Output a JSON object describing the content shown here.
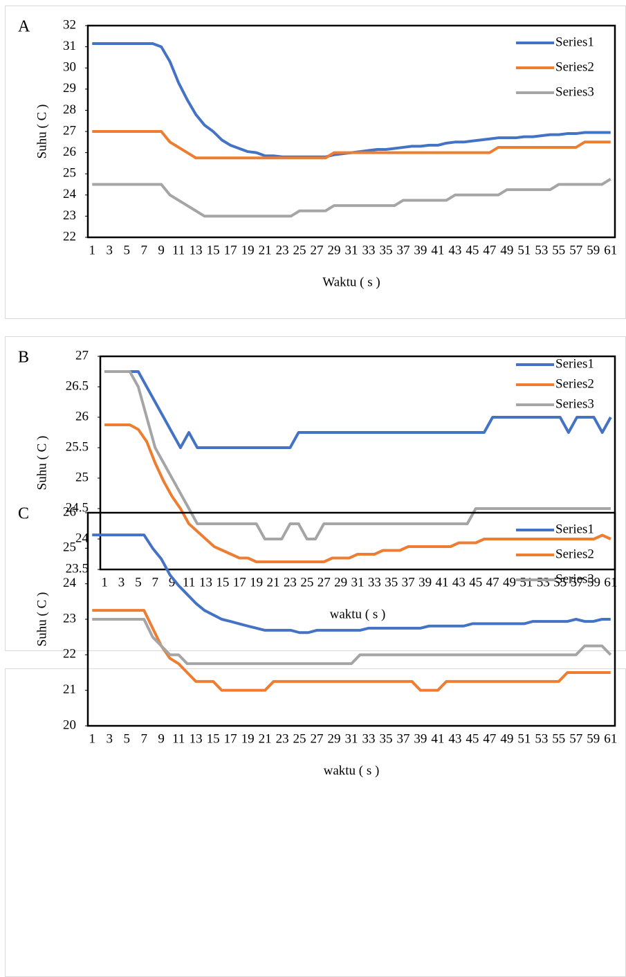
{
  "chart_data": [
    {
      "type": "line",
      "label": "A",
      "ylabel": "Suhu ( C )",
      "xlabel": "Waktu ( s )",
      "categories": [
        1,
        null,
        3,
        null,
        5,
        null,
        7,
        null,
        9,
        null,
        11,
        null,
        13,
        null,
        15,
        null,
        17,
        null,
        19,
        null,
        21,
        null,
        23,
        null,
        25,
        null,
        27,
        null,
        29,
        null,
        31,
        null,
        33,
        null,
        35,
        null,
        37,
        null,
        39,
        null,
        41,
        null,
        43,
        null,
        45,
        null,
        47,
        null,
        49,
        null,
        51,
        null,
        53,
        null,
        55,
        null,
        57,
        null,
        59,
        null,
        61
      ],
      "ylim": [
        22,
        32
      ],
      "yticks": [
        22,
        23,
        24,
        25,
        26,
        27,
        28,
        29,
        30,
        31,
        32
      ],
      "grid": false,
      "legend": "upper right",
      "series": [
        {
          "name": "Series1",
          "color": "#4472c4",
          "values": [
            31.15,
            31.15,
            31.15,
            31.15,
            31.15,
            31.15,
            31.15,
            31.15,
            31.0,
            30.3,
            29.3,
            28.5,
            27.8,
            27.3,
            27.0,
            26.6,
            26.35,
            26.2,
            26.05,
            26.0,
            25.85,
            25.85,
            25.8,
            25.8,
            25.8,
            25.8,
            25.8,
            25.8,
            25.9,
            25.95,
            26.0,
            26.05,
            26.1,
            26.15,
            26.15,
            26.2,
            26.25,
            26.3,
            26.3,
            26.35,
            26.35,
            26.45,
            26.5,
            26.5,
            26.55,
            26.6,
            26.65,
            26.7,
            26.7,
            26.7,
            26.75,
            26.75,
            26.8,
            26.85,
            26.85,
            26.9,
            26.9,
            26.95,
            26.95,
            26.95,
            26.95
          ]
        },
        {
          "name": "Series2",
          "color": "#ed7d31",
          "values": [
            27,
            27,
            27,
            27,
            27,
            27,
            27,
            27,
            27,
            26.5,
            26.25,
            26,
            25.75,
            25.75,
            25.75,
            25.75,
            25.75,
            25.75,
            25.75,
            25.75,
            25.75,
            25.75,
            25.75,
            25.75,
            25.75,
            25.75,
            25.75,
            25.75,
            26,
            26,
            26,
            26,
            26,
            26,
            26,
            26,
            26,
            26,
            26,
            26,
            26,
            26,
            26,
            26,
            26,
            26,
            26,
            26.25,
            26.25,
            26.25,
            26.25,
            26.25,
            26.25,
            26.25,
            26.25,
            26.25,
            26.25,
            26.5,
            26.5,
            26.5,
            26.5
          ]
        },
        {
          "name": "Series3",
          "color": "#a5a5a5",
          "values": [
            24.5,
            24.5,
            24.5,
            24.5,
            24.5,
            24.5,
            24.5,
            24.5,
            24.5,
            24,
            23.75,
            23.5,
            23.25,
            23,
            23,
            23,
            23,
            23,
            23,
            23,
            23,
            23,
            23,
            23,
            23.25,
            23.25,
            23.25,
            23.25,
            23.5,
            23.5,
            23.5,
            23.5,
            23.5,
            23.5,
            23.5,
            23.5,
            23.75,
            23.75,
            23.75,
            23.75,
            23.75,
            23.75,
            24,
            24,
            24,
            24,
            24,
            24,
            24.25,
            24.25,
            24.25,
            24.25,
            24.25,
            24.25,
            24.5,
            24.5,
            24.5,
            24.5,
            24.5,
            24.5,
            24.75
          ]
        }
      ]
    },
    {
      "type": "line",
      "label": "B",
      "ylabel": "Suhu ( C )",
      "xlabel": "waktu ( s )",
      "categories": [
        1,
        null,
        3,
        null,
        5,
        null,
        7,
        null,
        9,
        null,
        11,
        null,
        13,
        null,
        15,
        null,
        17,
        null,
        19,
        null,
        21,
        null,
        23,
        null,
        25,
        null,
        27,
        null,
        29,
        null,
        31,
        null,
        33,
        null,
        35,
        null,
        37,
        null,
        39,
        null,
        41,
        null,
        43,
        null,
        45,
        null,
        47,
        null,
        49,
        null,
        51,
        null,
        53,
        null,
        55,
        null,
        57,
        null,
        59,
        null,
        61
      ],
      "ylim": [
        23.5,
        27
      ],
      "yticks": [
        23.5,
        24,
        24.5,
        25,
        25.5,
        26,
        26.5,
        27
      ],
      "grid": false,
      "legend": "upper right",
      "series": [
        {
          "name": "Series1",
          "color": "#4472c4",
          "values": [
            26.75,
            26.75,
            26.75,
            26.75,
            26.75,
            26.5,
            26.25,
            26,
            25.75,
            25.5,
            25.75,
            25.5,
            25.5,
            25.5,
            25.5,
            25.5,
            25.5,
            25.5,
            25.5,
            25.5,
            25.5,
            25.5,
            25.5,
            25.75,
            25.75,
            25.75,
            25.75,
            25.75,
            25.75,
            25.75,
            25.75,
            25.75,
            25.75,
            25.75,
            25.75,
            25.75,
            25.75,
            25.75,
            25.75,
            25.75,
            25.75,
            25.75,
            25.75,
            25.75,
            25.75,
            25.75,
            26,
            26,
            26,
            26,
            26,
            26,
            26,
            26,
            26,
            25.75,
            26,
            26,
            26,
            25.75,
            26
          ]
        },
        {
          "name": "Series2",
          "color": "#ed7d31",
          "values": [
            25.875,
            25.875,
            25.875,
            25.875,
            25.8,
            25.6,
            25.25,
            24.95,
            24.7,
            24.5,
            24.25,
            24.125,
            24,
            23.875,
            23.8125,
            23.75,
            23.6875,
            23.6875,
            23.625,
            23.625,
            23.625,
            23.625,
            23.625,
            23.625,
            23.625,
            23.625,
            23.625,
            23.6875,
            23.6875,
            23.6875,
            23.75,
            23.75,
            23.75,
            23.8125,
            23.8125,
            23.8125,
            23.875,
            23.875,
            23.875,
            23.875,
            23.875,
            23.875,
            23.9375,
            23.9375,
            23.9375,
            24,
            24,
            24,
            24,
            24,
            24,
            24,
            24,
            24,
            24,
            24,
            24,
            24,
            24,
            24.0625,
            24
          ]
        },
        {
          "name": "Series3",
          "color": "#a5a5a5",
          "values": [
            26.75,
            26.75,
            26.75,
            26.75,
            26.5,
            26,
            25.5,
            25.25,
            25,
            24.75,
            24.5,
            24.25,
            24.25,
            24.25,
            24.25,
            24.25,
            24.25,
            24.25,
            24.25,
            24,
            24,
            24,
            24.25,
            24.25,
            24,
            24,
            24.25,
            24.25,
            24.25,
            24.25,
            24.25,
            24.25,
            24.25,
            24.25,
            24.25,
            24.25,
            24.25,
            24.25,
            24.25,
            24.25,
            24.25,
            24.25,
            24.25,
            24.25,
            24.5,
            24.5,
            24.5,
            24.5,
            24.5,
            24.5,
            24.5,
            24.5,
            24.5,
            24.5,
            24.5,
            24.5,
            24.5,
            24.5,
            24.5,
            24.5,
            24.5
          ]
        }
      ]
    },
    {
      "type": "line",
      "label": "C",
      "ylabel": "Suhu ( C )",
      "xlabel": "waktu ( s )",
      "categories": [
        1,
        null,
        3,
        null,
        5,
        null,
        7,
        null,
        9,
        null,
        11,
        null,
        13,
        null,
        15,
        null,
        17,
        null,
        19,
        null,
        21,
        null,
        23,
        null,
        25,
        null,
        27,
        null,
        29,
        null,
        31,
        null,
        33,
        null,
        35,
        null,
        37,
        null,
        39,
        null,
        41,
        null,
        43,
        null,
        45,
        null,
        47,
        null,
        49,
        null,
        51,
        null,
        53,
        null,
        55,
        null,
        57,
        null,
        59,
        null,
        61
      ],
      "ylim": [
        20,
        26
      ],
      "yticks": [
        20,
        21,
        22,
        23,
        24,
        25,
        26
      ],
      "grid": false,
      "legend": "upper right",
      "series": [
        {
          "name": "Series1",
          "color": "#4472c4",
          "values": [
            25.375,
            25.375,
            25.375,
            25.375,
            25.375,
            25.375,
            25.375,
            25,
            24.7,
            24.25,
            23.95,
            23.7,
            23.45,
            23.25,
            23.125,
            23,
            22.94,
            22.875,
            22.81,
            22.75,
            22.69,
            22.69,
            22.69,
            22.69,
            22.625,
            22.625,
            22.69,
            22.69,
            22.69,
            22.69,
            22.69,
            22.69,
            22.75,
            22.75,
            22.75,
            22.75,
            22.75,
            22.75,
            22.75,
            22.81,
            22.81,
            22.81,
            22.81,
            22.81,
            22.875,
            22.875,
            22.875,
            22.875,
            22.875,
            22.875,
            22.875,
            22.94,
            22.94,
            22.94,
            22.94,
            22.94,
            23,
            22.94,
            22.94,
            23,
            23
          ]
        },
        {
          "name": "Series2",
          "color": "#ed7d31",
          "values": [
            23.25,
            23.25,
            23.25,
            23.25,
            23.25,
            23.25,
            23.25,
            22.75,
            22.25,
            21.9,
            21.75,
            21.5,
            21.25,
            21.25,
            21.25,
            21,
            21,
            21,
            21,
            21,
            21,
            21.25,
            21.25,
            21.25,
            21.25,
            21.25,
            21.25,
            21.25,
            21.25,
            21.25,
            21.25,
            21.25,
            21.25,
            21.25,
            21.25,
            21.25,
            21.25,
            21.25,
            21,
            21,
            21,
            21.25,
            21.25,
            21.25,
            21.25,
            21.25,
            21.25,
            21.25,
            21.25,
            21.25,
            21.25,
            21.25,
            21.25,
            21.25,
            21.25,
            21.5,
            21.5,
            21.5,
            21.5,
            21.5,
            21.5
          ]
        },
        {
          "name": "Series3",
          "color": "#a5a5a5",
          "values": [
            23,
            23,
            23,
            23,
            23,
            23,
            23,
            22.5,
            22.25,
            22,
            22,
            21.75,
            21.75,
            21.75,
            21.75,
            21.75,
            21.75,
            21.75,
            21.75,
            21.75,
            21.75,
            21.75,
            21.75,
            21.75,
            21.75,
            21.75,
            21.75,
            21.75,
            21.75,
            21.75,
            21.75,
            22,
            22,
            22,
            22,
            22,
            22,
            22,
            22,
            22,
            22,
            22,
            22,
            22,
            22,
            22,
            22,
            22,
            22,
            22,
            22,
            22,
            22,
            22,
            22,
            22,
            22,
            22.25,
            22.25,
            22.25,
            22
          ]
        }
      ]
    }
  ]
}
